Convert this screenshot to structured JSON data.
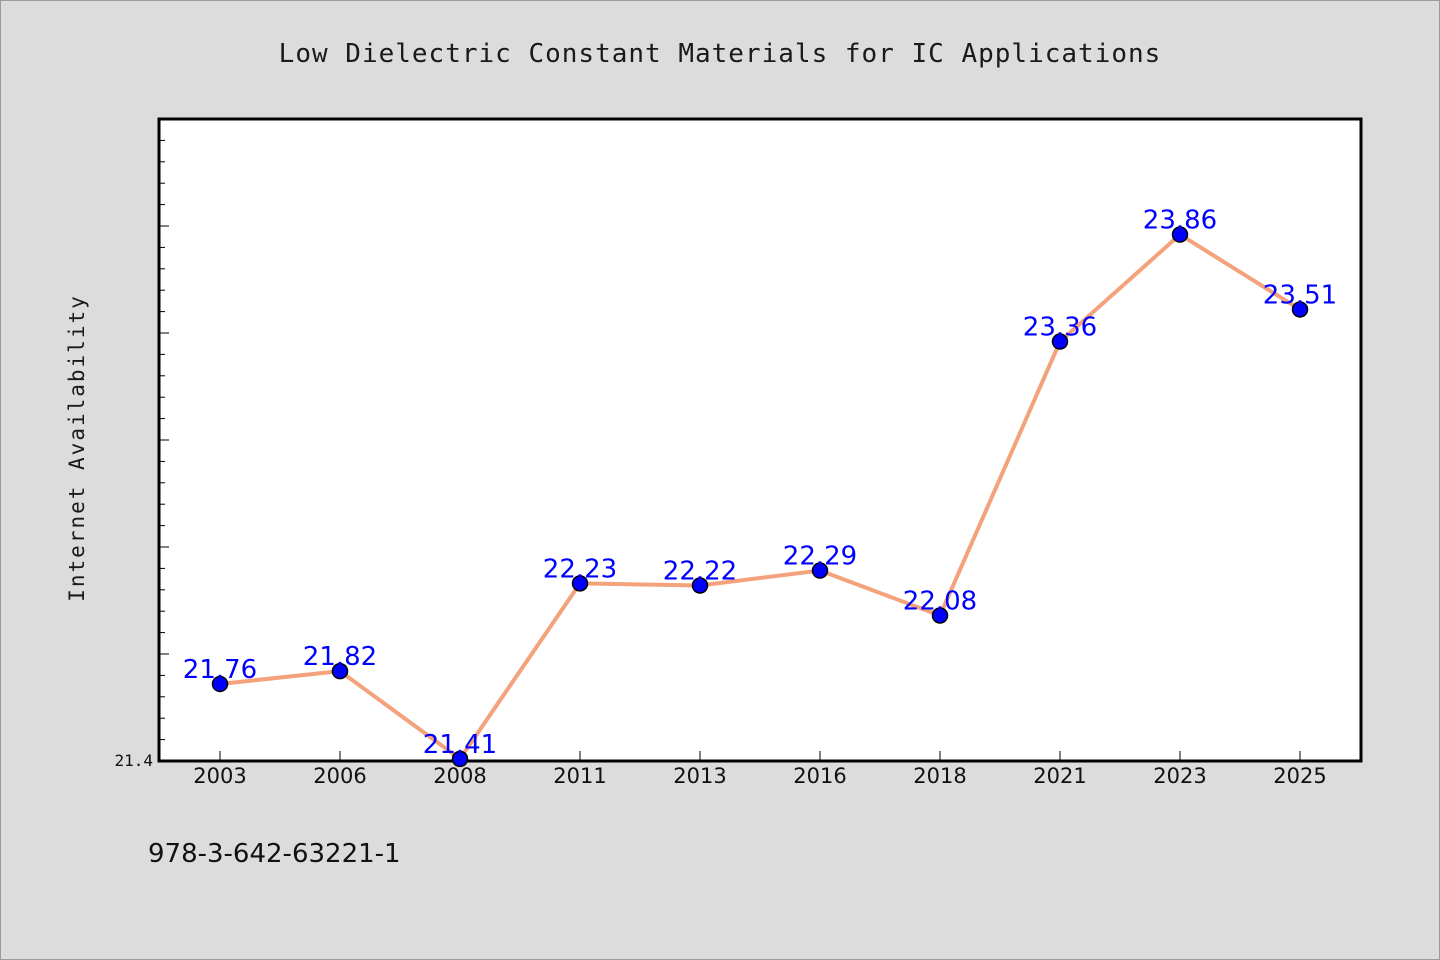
{
  "chart_data": {
    "type": "line",
    "title": "Low Dielectric Constant Materials for IC Applications",
    "xlabel": "",
    "ylabel": "Internet Availability",
    "categories": [
      "2003",
      "2006",
      "2008",
      "2011",
      "2013",
      "2016",
      "2018",
      "2021",
      "2023",
      "2025"
    ],
    "values": [
      21.76,
      21.82,
      21.41,
      22.23,
      22.22,
      22.29,
      22.08,
      23.36,
      23.86,
      23.51
    ],
    "data_labels": [
      "21.76",
      "21.82",
      "21.41",
      "22.23",
      "22.22",
      "22.29",
      "22.08",
      "23.36",
      "23.86",
      "23.51"
    ],
    "ylim": [
      21.4,
      24.4
    ],
    "y_tick_labels": [
      "21.4"
    ],
    "grid": false,
    "legend": "none",
    "colors": {
      "line": "#f4a27c",
      "marker": "#0000ff",
      "data_label": "#0000ff",
      "background": "#dcdcdc",
      "plot_background": "#ffffff"
    }
  },
  "footer": {
    "isbn": "978-3-642-63221-1"
  }
}
